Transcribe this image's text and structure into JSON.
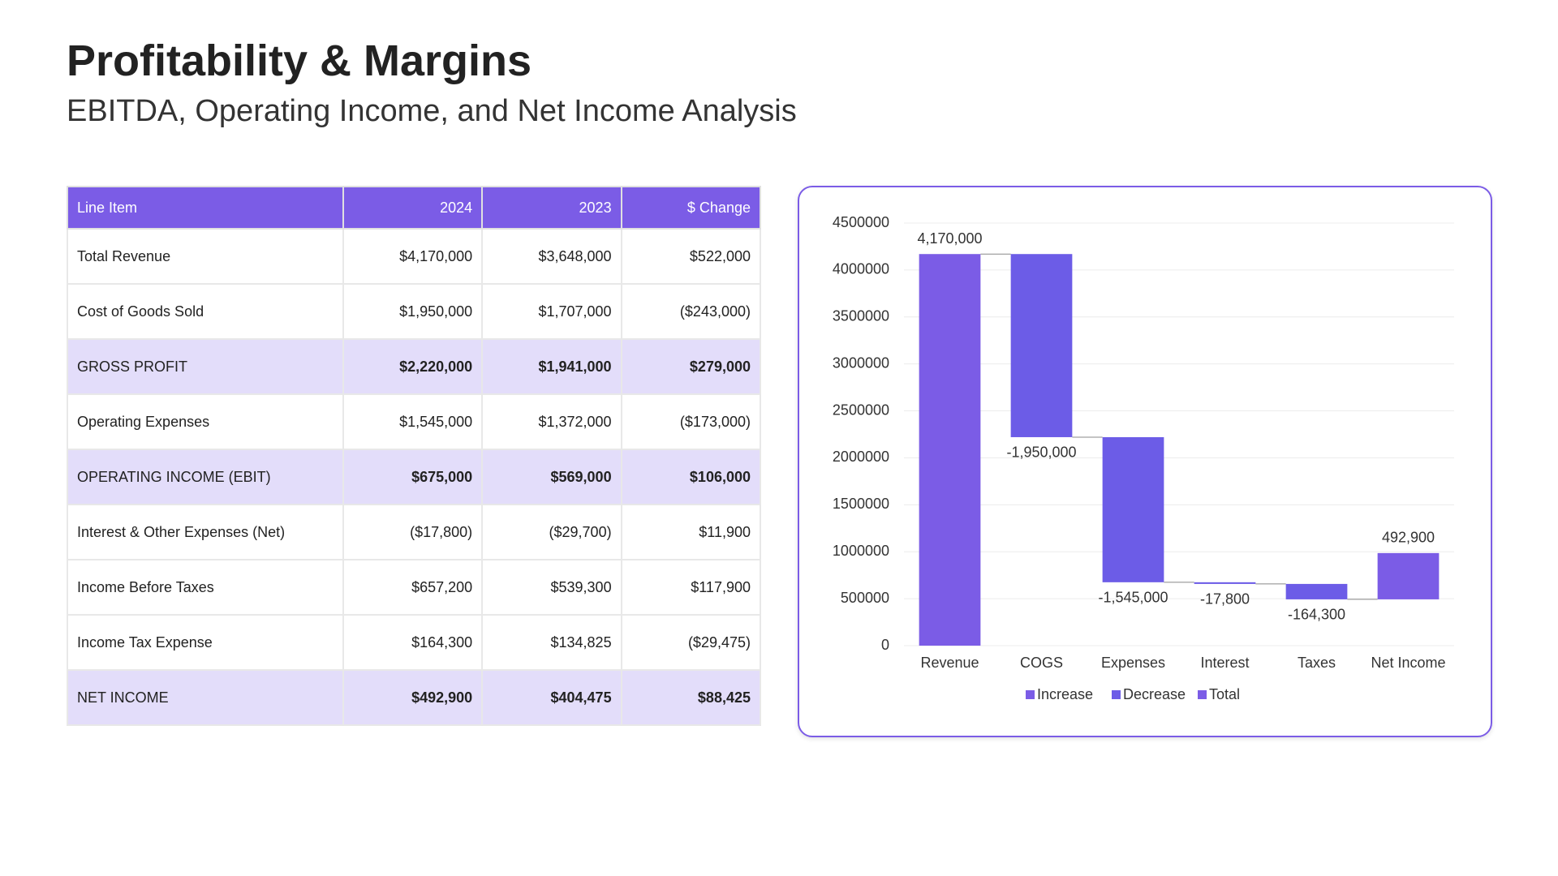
{
  "header": {
    "title": "Profitability & Margins",
    "subtitle": "EBITDA, Operating Income, and Net Income Analysis"
  },
  "table": {
    "columns": [
      "Line Item",
      "2024",
      "2023",
      "$ Change"
    ],
    "rows": [
      [
        "Total Revenue",
        "$4,170,000",
        "$3,648,000",
        "$522,000"
      ],
      [
        "Cost of Goods Sold",
        "$1,950,000",
        "$1,707,000",
        "($243,000)"
      ],
      [
        "GROSS PROFIT",
        "$2,220,000",
        "$1,941,000",
        "$279,000"
      ],
      [
        "Operating Expenses",
        "$1,545,000",
        "$1,372,000",
        "($173,000)"
      ],
      [
        "OPERATING INCOME (EBIT)",
        "$675,000",
        "$569,000",
        "$106,000"
      ],
      [
        "Interest & Other Expenses (Net)",
        "($17,800)",
        "($29,700)",
        "$11,900"
      ],
      [
        "Income Before Taxes",
        "$657,200",
        "$539,300",
        "$117,900"
      ],
      [
        "Income Tax Expense",
        "$164,300",
        "$134,825",
        "($29,475)"
      ],
      [
        "NET INCOME",
        "$492,900",
        "$404,475",
        "$88,425"
      ]
    ]
  },
  "chart_data": {
    "type": "waterfall",
    "categories": [
      "Revenue",
      "COGS",
      "Expenses",
      "Interest",
      "Taxes",
      "Net Income"
    ],
    "series": [
      {
        "name": "Increase",
        "color": "#7b5ce6",
        "values": [
          4170000,
          null,
          null,
          null,
          null,
          492900
        ],
        "value_labels": [
          "4,170,000",
          null,
          null,
          null,
          null,
          "492,900"
        ]
      },
      {
        "name": "Decrease",
        "color": "#6c5ce7",
        "values": [
          null,
          -1950000,
          -1545000,
          -17800,
          -164300,
          null
        ],
        "value_labels": [
          null,
          "-1,950,000",
          "-1,545,000",
          "-17,800",
          "-164,300",
          null
        ]
      },
      {
        "name": "Total",
        "color": "#7b5ce6",
        "values": [
          null,
          null,
          null,
          null,
          null,
          null
        ]
      }
    ],
    "ylim": [
      0,
      4500000
    ],
    "yticks": [
      0,
      500000,
      1000000,
      1500000,
      2000000,
      2500000,
      3000000,
      3500000,
      4000000,
      4500000
    ],
    "grid": true
  }
}
